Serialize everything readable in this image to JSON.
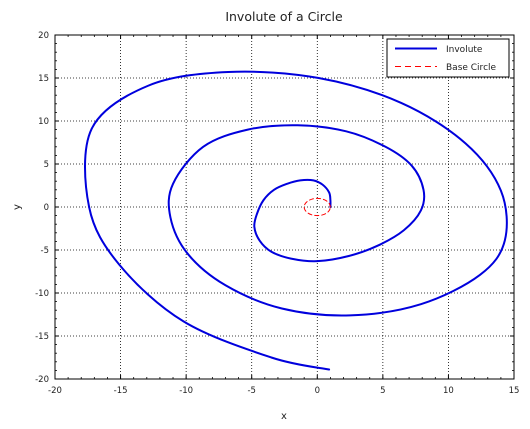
{
  "chart_data": {
    "type": "line",
    "title": "Involute of a Circle",
    "xlabel": "x",
    "ylabel": "y",
    "xlim": [
      -20,
      15
    ],
    "ylim": [
      -20,
      20
    ],
    "xticks": [
      "-20",
      "-15",
      "-10",
      "-5",
      "0",
      "5",
      "10",
      "15"
    ],
    "yticks": [
      "-20",
      "-15",
      "-10",
      "-5",
      "0",
      "5",
      "10",
      "15",
      "20"
    ],
    "grid": true,
    "legend_position": "top-right",
    "series": [
      {
        "name": "Involute",
        "color": "#0000dd",
        "style": "solid",
        "x": [
          1,
          1.0,
          0.9,
          0.4,
          -0.3,
          -1.3,
          -2.3,
          -3.3,
          -4.1,
          -4.6,
          -4.8,
          -4.4,
          -3.5,
          -2.0,
          0.0,
          2.4,
          4.6,
          6.6,
          7.9,
          8.1,
          7.2,
          5.2,
          2.2,
          -1.5,
          -5.3,
          -8.7,
          -11.0,
          -11.2,
          -9.9,
          -7.0,
          -2.7,
          2.5,
          7.9,
          12.4,
          14.3,
          14.0,
          11.3,
          6.4,
          0.1,
          -6.8,
          -12.9,
          -17.2,
          -17.4,
          -15.1,
          -10.2,
          -3.5,
          0.9
        ],
        "y": [
          0,
          0.8,
          1.7,
          2.6,
          3.1,
          3.1,
          2.7,
          2.0,
          0.8,
          -0.8,
          -2.3,
          -3.9,
          -5.2,
          -6.0,
          -6.3,
          -5.7,
          -4.5,
          -2.7,
          -0.4,
          2.0,
          4.8,
          7.0,
          8.8,
          9.5,
          9.0,
          7.0,
          2.7,
          -1.2,
          -5.4,
          -9.1,
          -11.8,
          -12.6,
          -11.3,
          -7.9,
          -3.9,
          1.9,
          7.4,
          12.1,
          15.0,
          15.7,
          14.1,
          9.1,
          0.0,
          -6.7,
          -13.3,
          -17.5,
          -18.9
        ]
      },
      {
        "name": "Base Circle",
        "color": "#ff0000",
        "style": "dashed",
        "x": [
          1.0,
          0.924,
          0.707,
          0.383,
          0.0,
          -0.383,
          -0.707,
          -0.924,
          -1.0,
          -0.924,
          -0.707,
          -0.383,
          0.0,
          0.383,
          0.707,
          0.924,
          1.0
        ],
        "y": [
          0.0,
          0.383,
          0.707,
          0.924,
          1.0,
          0.924,
          0.707,
          0.383,
          0.0,
          -0.383,
          -0.707,
          -0.924,
          -1.0,
          -0.924,
          -0.707,
          -0.383,
          0.0
        ]
      }
    ]
  }
}
